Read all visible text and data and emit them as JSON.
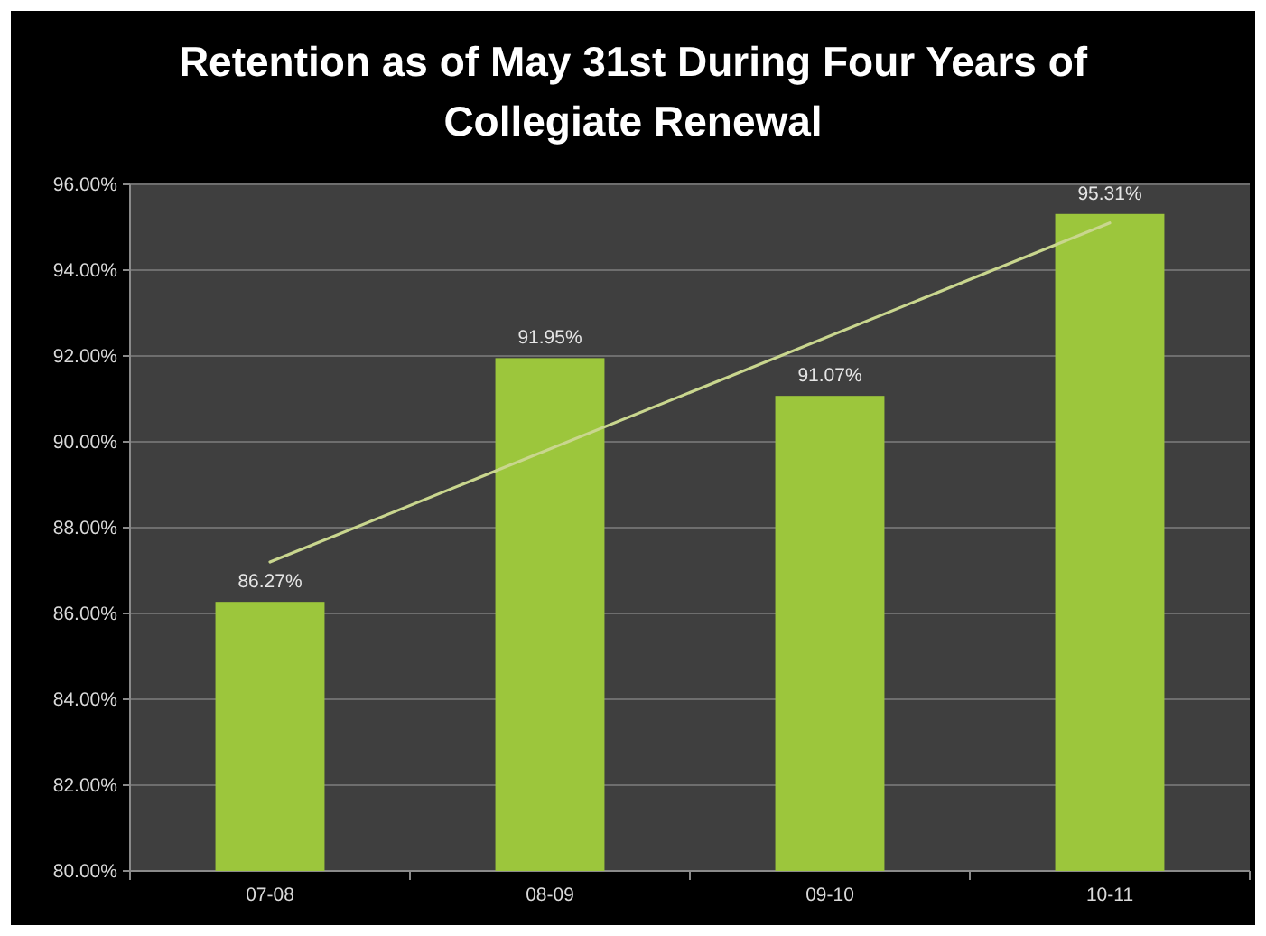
{
  "chart_data": {
    "type": "bar",
    "title": "Retention as of May 31st During Four Years of Collegiate Renewal",
    "categories": [
      "07-08",
      "08-09",
      "09-10",
      "10-11"
    ],
    "series": [
      {
        "type": "bar",
        "color": "#9cc63c",
        "values": [
          86.27,
          91.95,
          91.07,
          95.31
        ],
        "value_labels": [
          "86.27%",
          "91.95%",
          "91.07%",
          "95.31%"
        ]
      },
      {
        "type": "line",
        "color": "#c9d68e",
        "x": [
          "07-08",
          "10-11"
        ],
        "values": [
          87.2,
          95.1
        ]
      }
    ],
    "ylim": [
      80,
      96
    ],
    "yticks": [
      {
        "value": 80,
        "label": "80.00%"
      },
      {
        "value": 82,
        "label": "82.00%"
      },
      {
        "value": 84,
        "label": "84.00%"
      },
      {
        "value": 86,
        "label": "86.00%"
      },
      {
        "value": 88,
        "label": "88.00%"
      },
      {
        "value": 90,
        "label": "90.00%"
      },
      {
        "value": 92,
        "label": "92.00%"
      },
      {
        "value": 94,
        "label": "94.00%"
      },
      {
        "value": 96,
        "label": "96.00%"
      }
    ],
    "grid": "y"
  }
}
